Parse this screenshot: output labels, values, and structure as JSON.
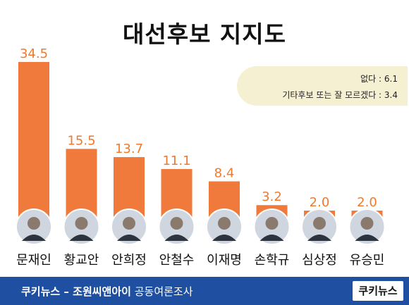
{
  "title": "대선후보 지지도",
  "notes": [
    {
      "label": "없다",
      "value": 6.1
    },
    {
      "label": "기타후보 또는 잘 모르겠다",
      "value": 3.4
    }
  ],
  "footer": {
    "source_bold": "쿠키뉴스 – 조원씨앤아이",
    "source_rest": " 공동여론조사",
    "logo": "쿠키뉴스"
  },
  "colors": {
    "bar": "#f07a3b",
    "value_label": "#ef7a2e",
    "footer_bg": "#1f4fa0",
    "note_bg": "#f6f0d2"
  },
  "chart_data": {
    "type": "bar",
    "categories": [
      "문재인",
      "황교안",
      "안희정",
      "안철수",
      "이재명",
      "손학규",
      "심상정",
      "유승민"
    ],
    "values": [
      34.5,
      15.5,
      13.7,
      11.1,
      8.4,
      3.2,
      2.0,
      2.0
    ],
    "value_labels": [
      "34.5",
      "15.5",
      "13.7",
      "11.1",
      "8.4",
      "3.2",
      "2.0",
      "2.0"
    ],
    "title": "",
    "xlabel": "",
    "ylabel": "",
    "ylim": [
      0,
      35
    ],
    "grid": false,
    "icons": [
      "person-photo-icon"
    ]
  }
}
